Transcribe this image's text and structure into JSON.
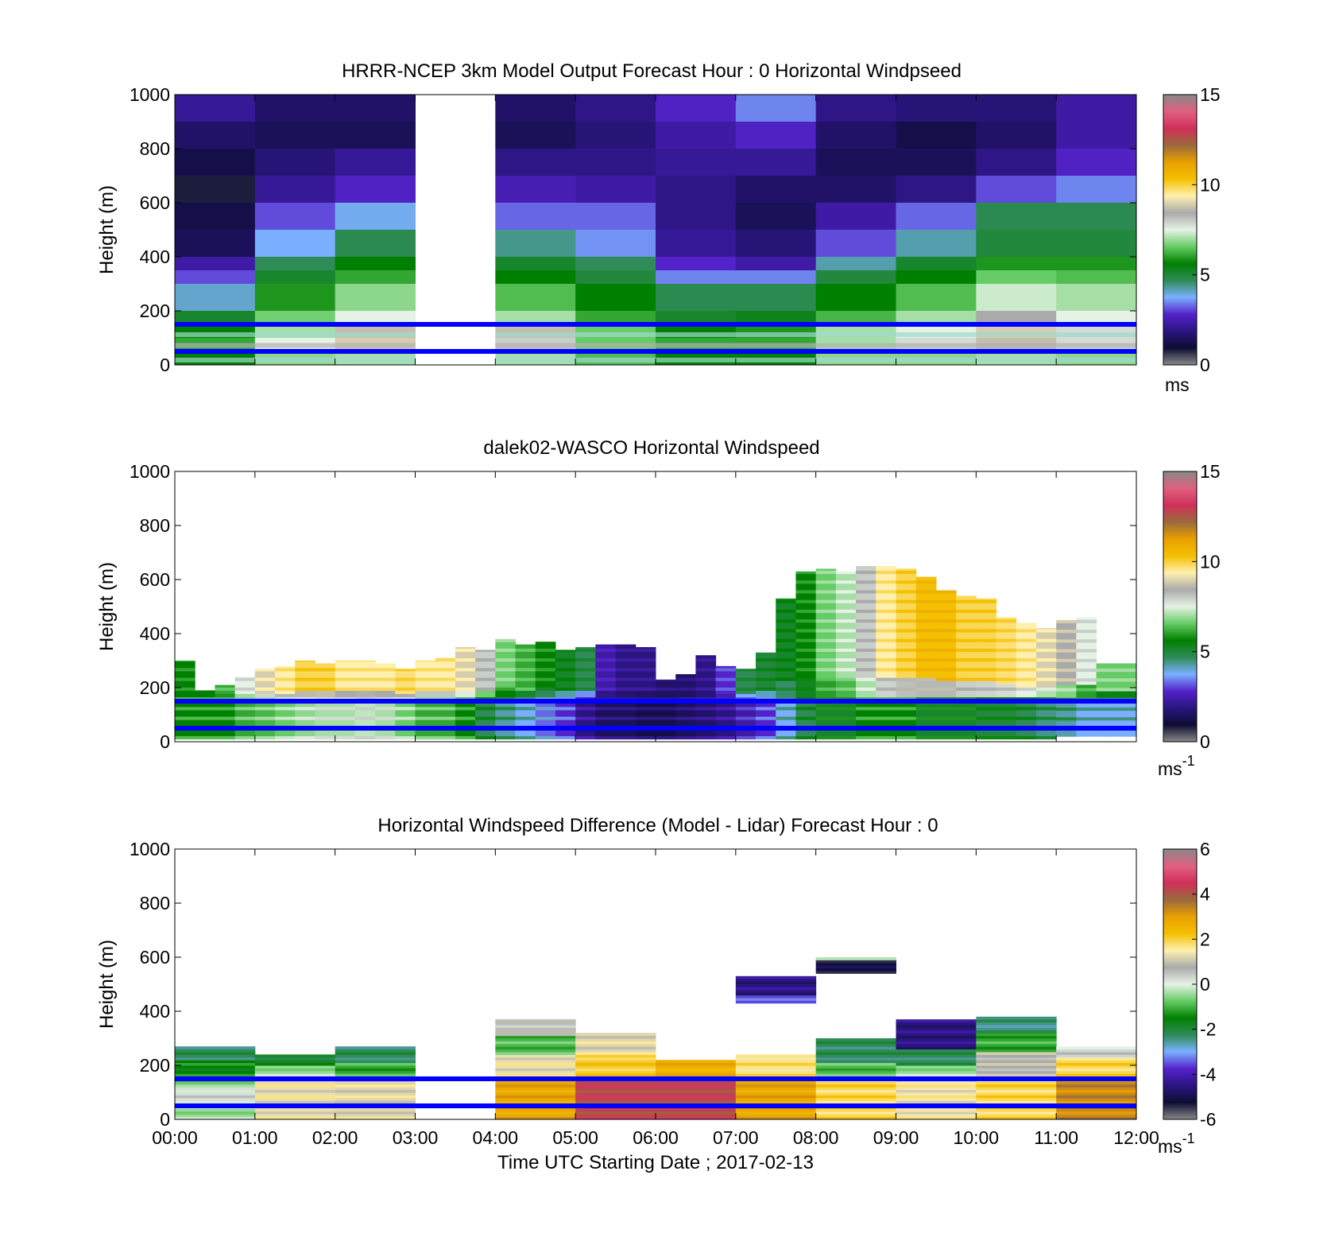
{
  "colors": {
    "reference_lines": "#0000ff",
    "colorbar_stops": [
      "#888888",
      "#0d0d33",
      "#2a1580",
      "#5522cc",
      "#7ab0ff",
      "#2e8b57",
      "#008000",
      "#66cc66",
      "#e6f2e6",
      "#aaaaaa",
      "#fff0b0",
      "#f5c000",
      "#e8a000",
      "#9b6a3c",
      "#d0305a",
      "#e06080",
      "#888888"
    ]
  },
  "chart_data": [
    {
      "type": "heatmap",
      "title": "HRRR-NCEP 3km Model Output   Forecast Hour : 0 Horizontal Windpseed",
      "ylabel": "Height (m)",
      "xlabel": "",
      "xlim": [
        0,
        12
      ],
      "ylim": [
        0,
        1000
      ],
      "yticks": [
        0,
        200,
        400,
        600,
        800,
        1000
      ],
      "colorbar": {
        "range": [
          0,
          15
        ],
        "ticks": [
          0,
          5,
          10,
          15
        ],
        "unit": "ms",
        "unit_sup": ""
      },
      "reference_lines_m": [
        50,
        150
      ],
      "grid": false,
      "column_hours": [
        0,
        1,
        2,
        3,
        4,
        5,
        6,
        7,
        8,
        9,
        10,
        11
      ],
      "heights_m": [
        1000,
        900,
        800,
        700,
        600,
        500,
        400,
        350,
        300,
        200,
        150,
        100,
        50,
        0
      ],
      "values": [
        [
          1.8,
          1.2,
          1.2,
          null,
          1.2,
          1.6,
          2.4,
          3.2,
          1.6,
          1.4,
          1.4,
          2.0
        ],
        [
          1.2,
          1.0,
          1.0,
          null,
          1.0,
          1.4,
          2.0,
          2.4,
          1.2,
          0.8,
          1.2,
          2.0
        ],
        [
          0.8,
          1.4,
          1.8,
          null,
          1.6,
          1.6,
          1.8,
          1.8,
          1.0,
          1.0,
          1.6,
          2.4
        ],
        [
          0.4,
          1.8,
          2.4,
          null,
          2.2,
          2.0,
          1.6,
          1.2,
          1.2,
          1.6,
          2.8,
          3.2
        ],
        [
          0.8,
          2.8,
          3.6,
          null,
          3.0,
          3.0,
          1.6,
          1.0,
          2.0,
          3.0,
          4.6,
          4.6
        ],
        [
          1.0,
          3.5,
          4.6,
          null,
          4.2,
          3.3,
          1.8,
          1.4,
          2.8,
          4.0,
          4.8,
          4.8
        ],
        [
          2.0,
          4.5,
          5.5,
          null,
          5.0,
          4.5,
          2.5,
          2.0,
          4.0,
          5.0,
          5.8,
          5.8
        ],
        [
          2.8,
          5.0,
          6.0,
          null,
          5.5,
          4.8,
          3.2,
          3.2,
          4.8,
          5.5,
          6.5,
          6.3
        ],
        [
          3.8,
          5.8,
          6.8,
          null,
          6.3,
          5.5,
          4.6,
          4.6,
          5.5,
          6.3,
          7.3,
          7.0
        ],
        [
          5.0,
          6.6,
          7.5,
          null,
          7.0,
          6.0,
          5.0,
          5.2,
          6.2,
          7.0,
          8.5,
          7.5
        ],
        [
          5.5,
          7.0,
          8.8,
          null,
          8.8,
          6.5,
          5.5,
          5.8,
          7.0,
          7.5,
          9.0,
          7.8
        ],
        [
          6.0,
          7.5,
          9.0,
          null,
          8.0,
          6.5,
          6.0,
          6.0,
          7.0,
          7.8,
          8.8,
          7.8
        ],
        [
          5.5,
          6.8,
          7.0,
          null,
          7.0,
          6.3,
          5.5,
          5.5,
          6.8,
          6.8,
          7.0,
          6.8
        ]
      ]
    },
    {
      "type": "heatmap",
      "title": "dalek02-WASCO  Horizontal Windspeed",
      "ylabel": "Height (m)",
      "xlabel": "",
      "xlim": [
        0,
        12
      ],
      "ylim": [
        0,
        1000
      ],
      "yticks": [
        0,
        200,
        400,
        600,
        800,
        1000
      ],
      "colorbar": {
        "range": [
          0,
          15
        ],
        "ticks": [
          0,
          5,
          10,
          15
        ],
        "unit": "ms",
        "unit_sup": "-1"
      },
      "reference_lines_m": [
        50,
        150
      ],
      "grid": false,
      "time_bins_h": [
        0.0,
        0.25,
        0.5,
        0.75,
        1.0,
        1.25,
        1.5,
        1.75,
        2.0,
        2.25,
        2.5,
        2.75,
        3.0,
        3.25,
        3.5,
        3.75,
        4.0,
        4.25,
        4.5,
        4.75,
        5.0,
        5.25,
        5.5,
        5.75,
        6.0,
        6.25,
        6.5,
        6.75,
        7.0,
        7.25,
        7.5,
        7.75,
        8.0,
        8.25,
        8.5,
        8.75,
        9.0,
        9.25,
        9.5,
        9.75,
        10.0,
        10.25,
        10.5,
        10.75,
        11.0,
        11.25,
        11.5,
        11.75
      ],
      "profile_top_m": [
        300,
        190,
        210,
        240,
        270,
        280,
        300,
        290,
        300,
        300,
        290,
        270,
        300,
        310,
        350,
        340,
        380,
        360,
        370,
        340,
        350,
        360,
        360,
        350,
        230,
        250,
        320,
        280,
        270,
        330,
        530,
        630,
        640,
        630,
        650,
        650,
        640,
        610,
        560,
        540,
        530,
        460,
        440,
        420,
        450,
        460,
        290,
        290
      ],
      "profile_bottom_m": [
        10,
        10,
        10,
        10,
        10,
        10,
        10,
        10,
        10,
        10,
        10,
        10,
        10,
        10,
        10,
        10,
        10,
        10,
        10,
        10,
        10,
        10,
        10,
        10,
        10,
        10,
        10,
        10,
        10,
        10,
        10,
        10,
        10,
        10,
        10,
        10,
        10,
        10,
        10,
        10,
        10,
        10,
        10,
        10,
        20,
        20,
        20,
        20
      ],
      "near_surface_speed_ms": [
        5.5,
        5.5,
        5.5,
        6.0,
        6.2,
        6.5,
        6.8,
        7.0,
        7.0,
        7.2,
        7.0,
        6.5,
        6.0,
        6.0,
        5.5,
        4.5,
        4.0,
        3.5,
        3.0,
        2.5,
        1.5,
        1.0,
        1.0,
        0.8,
        0.8,
        1.0,
        1.2,
        1.5,
        2.0,
        2.5,
        3.5,
        4.5,
        5.0,
        5.0,
        5.5,
        5.5,
        5.5,
        5.0,
        5.0,
        5.0,
        4.8,
        4.8,
        4.5,
        4.2,
        4.0,
        3.5,
        3.5,
        3.5
      ],
      "upper_speed_ms": [
        5.5,
        5.5,
        6.0,
        7.5,
        9.0,
        9.5,
        10.0,
        10.0,
        9.5,
        9.5,
        9.5,
        9.8,
        9.5,
        9.5,
        9.0,
        8.0,
        6.5,
        6.0,
        5.5,
        5.0,
        4.5,
        2.0,
        1.5,
        1.5,
        1.2,
        1.2,
        1.5,
        2.5,
        4.5,
        4.8,
        5.0,
        5.5,
        6.5,
        7.0,
        8.0,
        9.5,
        10.0,
        10.5,
        10.5,
        10.0,
        10.0,
        9.8,
        9.5,
        9.0,
        8.5,
        7.5,
        6.5,
        6.5
      ]
    },
    {
      "type": "heatmap",
      "title": "Horizontal Windspeed Difference (Model - Lidar) Forecast Hour : 0",
      "ylabel": "Height (m)",
      "xlabel": "Time UTC  Starting Date ; 2017-02-13",
      "xlim": [
        0,
        12
      ],
      "ylim": [
        0,
        1000
      ],
      "xticks": [
        "00:00",
        "01:00",
        "02:00",
        "03:00",
        "04:00",
        "05:00",
        "06:00",
        "07:00",
        "08:00",
        "09:00",
        "10:00",
        "11:00",
        "12:00"
      ],
      "yticks": [
        0,
        200,
        400,
        600,
        800,
        1000
      ],
      "colorbar": {
        "range": [
          -6,
          6
        ],
        "ticks": [
          -6,
          -4,
          -2,
          0,
          2,
          4,
          6
        ],
        "unit": "ms",
        "unit_sup": "-1"
      },
      "reference_lines_m": [
        50,
        150
      ],
      "grid": false,
      "columns": [
        {
          "hour": 0,
          "top_m": 270,
          "layers": [
            [
              0,
              60,
              -0.5
            ],
            [
              60,
              120,
              0.2
            ],
            [
              120,
              160,
              -0.8
            ],
            [
              160,
              220,
              -1.6
            ],
            [
              220,
              270,
              -2.4
            ]
          ]
        },
        {
          "hour": 1,
          "top_m": 240,
          "layers": [
            [
              0,
              150,
              1.4
            ],
            [
              150,
              200,
              -0.5
            ],
            [
              200,
              240,
              -2.0
            ]
          ]
        },
        {
          "hour": 2,
          "top_m": 270,
          "layers": [
            [
              0,
              150,
              1.3
            ],
            [
              150,
              210,
              -1.2
            ],
            [
              210,
              270,
              -2.4
            ]
          ]
        },
        {
          "hour": 4,
          "top_m": 370,
          "layers": [
            [
              0,
              150,
              3.0
            ],
            [
              150,
              240,
              1.4
            ],
            [
              240,
              310,
              -1.0
            ],
            [
              310,
              370,
              0.6
            ]
          ]
        },
        {
          "hour": 5,
          "top_m": 320,
          "layers": [
            [
              0,
              150,
              4.5
            ],
            [
              150,
              240,
              2.2
            ],
            [
              240,
              320,
              1.3
            ]
          ]
        },
        {
          "hour": 6,
          "top_m": 220,
          "layers": [
            [
              0,
              150,
              4.5
            ],
            [
              150,
              220,
              2.8
            ]
          ]
        },
        {
          "hour": 7,
          "top_m": 240,
          "layers": [
            [
              0,
              150,
              3.0
            ],
            [
              150,
              240,
              1.8
            ]
          ]
        },
        {
          "hour": 8,
          "top_m": 300,
          "layers": [
            [
              0,
              150,
              2.0
            ],
            [
              150,
              210,
              -1.0
            ],
            [
              210,
              300,
              -2.4
            ]
          ]
        },
        {
          "hour": 9,
          "top_m": 370,
          "layers": [
            [
              0,
              150,
              1.5
            ],
            [
              150,
              200,
              -0.5
            ],
            [
              200,
              260,
              -2.4
            ],
            [
              260,
              370,
              -4.8
            ]
          ]
        },
        {
          "hour": 10,
          "top_m": 380,
          "layers": [
            [
              0,
              150,
              2.0
            ],
            [
              150,
              250,
              0.8
            ],
            [
              250,
              320,
              -1.2
            ],
            [
              320,
              380,
              -2.6
            ]
          ]
        },
        {
          "hour": 11,
          "top_m": 270,
          "layers": [
            [
              0,
              150,
              3.5
            ],
            [
              150,
              230,
              2.0
            ],
            [
              230,
              270,
              0.3
            ]
          ]
        },
        {
          "hour": 7,
          "top_m": 530,
          "layers": [
            [
              430,
              460,
              -3.8
            ],
            [
              460,
              530,
              -4.8
            ]
          ]
        },
        {
          "hour": 8,
          "top_m": 600,
          "layers": [
            [
              540,
              590,
              -5.5
            ],
            [
              590,
              600,
              -0.3
            ]
          ]
        }
      ]
    }
  ]
}
